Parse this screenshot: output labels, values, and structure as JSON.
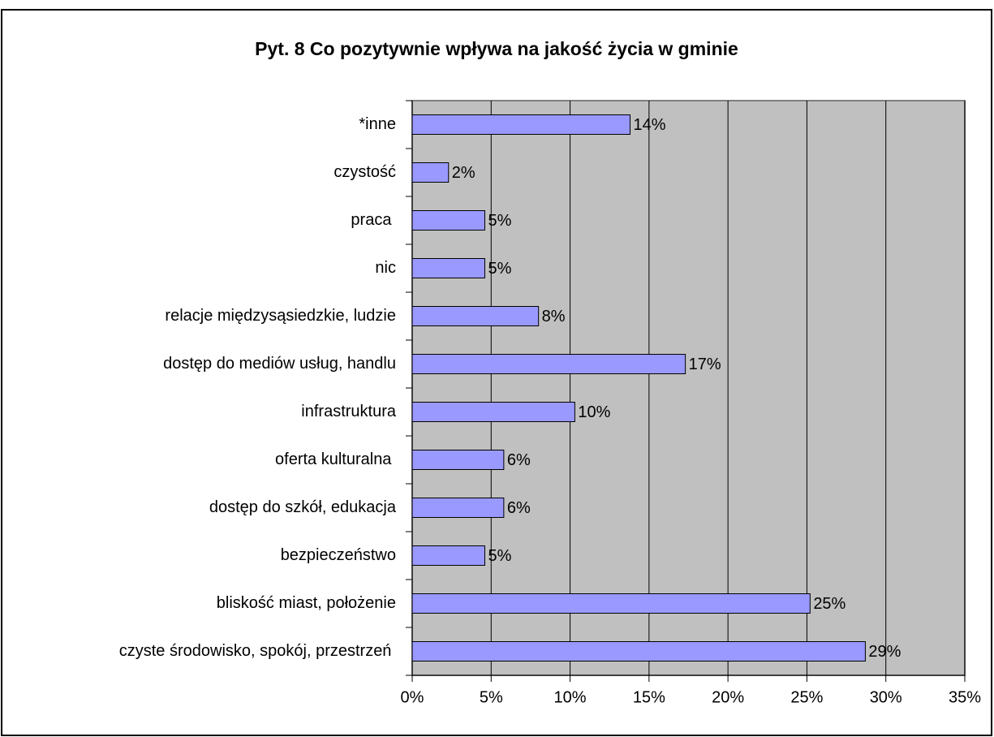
{
  "chart_data": {
    "type": "bar",
    "orientation": "horizontal",
    "title": "Pyt. 8 Co pozytywnie wpływa na jakość życia w gminie",
    "categories": [
      "*inne",
      "czystość",
      "praca ",
      "nic",
      "relacje międzysąsiedzkie, ludzie",
      "dostęp do mediów usług, handlu",
      "infrastruktura",
      "oferta kulturalna ",
      "dostęp do szkół, edukacja",
      "bezpieczeństwo",
      "bliskość miast, położenie",
      "czyste środowisko, spokój, przestrzeń "
    ],
    "values": [
      13.8,
      2.3,
      4.6,
      4.6,
      8.0,
      17.3,
      10.3,
      5.8,
      5.8,
      4.6,
      25.2,
      28.7
    ],
    "value_labels": [
      "14%",
      "2%",
      "5%",
      "5%",
      "8%",
      "17%",
      "10%",
      "6%",
      "6%",
      "5%",
      "25%",
      "29%"
    ],
    "color": "#9999ff",
    "xlim": [
      0,
      35
    ],
    "xticks": [
      {
        "value": 0,
        "label": "0%"
      },
      {
        "value": 5,
        "label": "5%"
      },
      {
        "value": 10,
        "label": "10%"
      },
      {
        "value": 15,
        "label": "15%"
      },
      {
        "value": 20,
        "label": "20%"
      },
      {
        "value": 25,
        "label": "25%"
      },
      {
        "value": 30,
        "label": "30%"
      },
      {
        "value": 35,
        "label": "35%"
      }
    ],
    "grid": true
  }
}
